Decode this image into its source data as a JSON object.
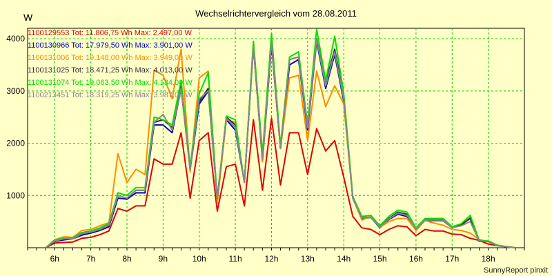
{
  "chart_data": {
    "type": "line",
    "title": "Wechselrichtervergleich vom 28.08.2011",
    "ylabel": "W",
    "xlabel": "",
    "ylim": [
      0,
      4200
    ],
    "xlim": [
      5.25,
      19.0
    ],
    "yticks": [
      1000,
      2000,
      3000,
      4000
    ],
    "xticks": [
      {
        "label": "6h",
        "x": 6.0
      },
      {
        "label": "7h",
        "x": 7.0
      },
      {
        "label": "8h",
        "x": 8.0
      },
      {
        "label": "9h",
        "x": 9.0
      },
      {
        "label": "10h",
        "x": 10.0
      },
      {
        "label": "11h",
        "x": 11.0
      },
      {
        "label": "12h",
        "x": 12.0
      },
      {
        "label": "13h",
        "x": 13.0
      },
      {
        "label": "14h",
        "x": 14.0
      },
      {
        "label": "15h",
        "x": 15.0
      },
      {
        "label": "16h",
        "x": 16.0
      },
      {
        "label": "17h",
        "x": 17.0
      },
      {
        "label": "18h",
        "x": 18.0
      }
    ],
    "grid": true,
    "legend_position": "top-left",
    "x": [
      5.75,
      6.0,
      6.25,
      6.5,
      6.75,
      7.0,
      7.25,
      7.5,
      7.75,
      8.0,
      8.25,
      8.5,
      8.75,
      9.0,
      9.25,
      9.5,
      9.75,
      10.0,
      10.25,
      10.5,
      10.75,
      11.0,
      11.25,
      11.5,
      11.75,
      12.0,
      12.25,
      12.5,
      12.75,
      13.0,
      13.25,
      13.5,
      13.75,
      14.0,
      14.25,
      14.5,
      14.75,
      15.0,
      15.25,
      15.5,
      15.75,
      16.0,
      16.25,
      16.5,
      16.75,
      17.0,
      17.25,
      17.5,
      17.75,
      18.0,
      18.25,
      18.5,
      18.75
    ],
    "series": [
      {
        "name": "1100129553",
        "legend": "1100129553 Tot: 11.806,75 Wh Max: 2.497,00 W",
        "color": "#e00000",
        "values": [
          0,
          90,
          100,
          110,
          180,
          200,
          250,
          320,
          750,
          700,
          800,
          800,
          1700,
          1600,
          1600,
          2200,
          950,
          2050,
          2200,
          700,
          1550,
          1600,
          800,
          2450,
          1100,
          2480,
          1200,
          2200,
          2200,
          1400,
          2280,
          1850,
          2050,
          1350,
          600,
          380,
          350,
          250,
          350,
          420,
          400,
          230,
          350,
          320,
          320,
          260,
          250,
          180,
          140,
          70,
          40,
          20,
          0
        ]
      },
      {
        "name": "1100130966",
        "legend": "1100130966 Tot: 17.979,50 Wh Max: 3.901,00 W",
        "color": "#0000c0",
        "values": [
          0,
          120,
          150,
          170,
          240,
          280,
          330,
          400,
          950,
          930,
          1050,
          1050,
          2350,
          2350,
          2200,
          3050,
          1500,
          2750,
          3000,
          950,
          2450,
          2250,
          1250,
          3900,
          1650,
          3900,
          1900,
          3500,
          3600,
          2250,
          3950,
          3050,
          3700,
          2800,
          950,
          560,
          580,
          380,
          540,
          640,
          600,
          380,
          520,
          520,
          520,
          380,
          440,
          560,
          120,
          120,
          40,
          20,
          0
        ]
      },
      {
        "name": "1100131006",
        "legend": "1100131006 Tot: 19.148,00 Wh Max: 3.949,00 W",
        "color": "#ff8c00",
        "values": [
          0,
          150,
          210,
          200,
          330,
          350,
          420,
          480,
          1800,
          1250,
          1500,
          1400,
          3400,
          3300,
          2850,
          3800,
          1450,
          3250,
          3380,
          850,
          2450,
          2400,
          1250,
          3950,
          1650,
          3950,
          1900,
          3250,
          3300,
          2050,
          3380,
          2700,
          3100,
          2750,
          950,
          530,
          600,
          390,
          500,
          560,
          560,
          330,
          520,
          470,
          430,
          350,
          330,
          280,
          160,
          110,
          50,
          20,
          0
        ]
      },
      {
        "name": "1100131025",
        "legend": "1100131025 Tot: 18.471,25 Wh Max: 4.013,00 W",
        "color": "#303030",
        "values": [
          0,
          130,
          170,
          180,
          270,
          300,
          350,
          440,
          1000,
          950,
          1100,
          1100,
          2400,
          2450,
          2300,
          3100,
          1500,
          2800,
          3050,
          950,
          2500,
          2350,
          1250,
          3850,
          1700,
          3900,
          1900,
          3600,
          3650,
          2300,
          4000,
          3150,
          3800,
          2900,
          950,
          580,
          580,
          400,
          560,
          680,
          640,
          360,
          540,
          540,
          540,
          390,
          430,
          570,
          130,
          120,
          40,
          20,
          0
        ]
      },
      {
        "name": "1100131074",
        "legend": "1100131074 Tot: 19.063,50 Wh Max: 4.134,00 W",
        "color": "#00e000",
        "values": [
          0,
          150,
          180,
          190,
          290,
          320,
          380,
          460,
          1050,
          1000,
          1150,
          1150,
          2500,
          2450,
          2350,
          3200,
          1550,
          2950,
          3350,
          950,
          2520,
          2450,
          1250,
          3950,
          1800,
          4100,
          1950,
          3650,
          3750,
          2350,
          4180,
          3200,
          4050,
          2950,
          980,
          600,
          620,
          420,
          600,
          720,
          680,
          380,
          560,
          560,
          560,
          400,
          460,
          620,
          140,
          130,
          50,
          20,
          0
        ]
      },
      {
        "name": "1100213451",
        "legend": "1100213451 Tot: 18.319,25 Wh Max: 3.987,00 W",
        "color": "#888888",
        "values": [
          0,
          130,
          170,
          170,
          270,
          300,
          350,
          430,
          1000,
          950,
          1100,
          1100,
          2400,
          2550,
          2250,
          3050,
          1500,
          2850,
          3000,
          950,
          2480,
          2300,
          1250,
          3850,
          1700,
          3950,
          1900,
          3600,
          3650,
          2300,
          3990,
          3100,
          3750,
          2850,
          950,
          570,
          580,
          390,
          550,
          660,
          620,
          360,
          530,
          530,
          530,
          380,
          420,
          500,
          130,
          120,
          40,
          20,
          0
        ]
      }
    ]
  },
  "footer": {
    "credit": "SunnyReport pinxit"
  }
}
